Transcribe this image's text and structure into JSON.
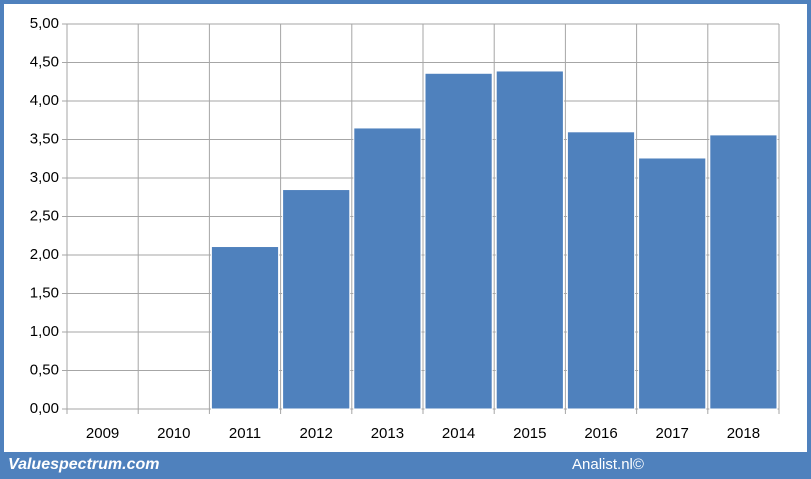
{
  "chart_data": {
    "type": "bar",
    "categories": [
      "2009",
      "2010",
      "2011",
      "2012",
      "2013",
      "2014",
      "2015",
      "2016",
      "2017",
      "2018"
    ],
    "values": [
      null,
      null,
      2.11,
      2.85,
      3.65,
      4.36,
      4.39,
      3.6,
      3.26,
      3.56
    ],
    "color": "#4f81bd",
    "ylim": [
      0,
      5
    ],
    "yticks": [
      {
        "value": 0,
        "label": "0,00"
      },
      {
        "value": 0.5,
        "label": "0,50"
      },
      {
        "value": 1,
        "label": "1,00"
      },
      {
        "value": 1.5,
        "label": "1,50"
      },
      {
        "value": 2,
        "label": "2,00"
      },
      {
        "value": 2.5,
        "label": "2,50"
      },
      {
        "value": 3,
        "label": "3,00"
      },
      {
        "value": 3.5,
        "label": "3,50"
      },
      {
        "value": 4,
        "label": "4,00"
      },
      {
        "value": 4.5,
        "label": "4,50"
      },
      {
        "value": 5,
        "label": "5,00"
      }
    ],
    "grid": true,
    "annotations": [
      "Valuespectrum.com",
      "Analist.nl©"
    ]
  }
}
